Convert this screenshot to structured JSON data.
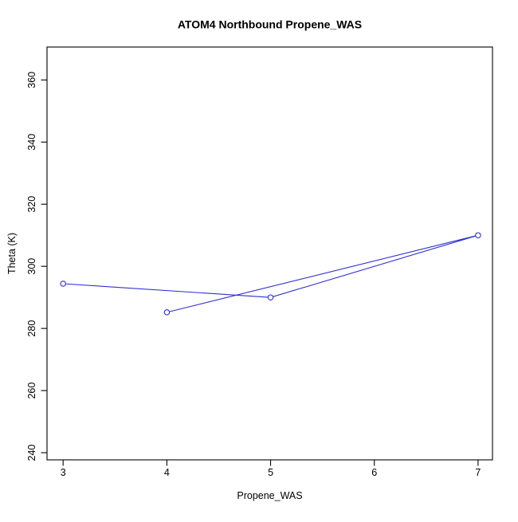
{
  "chart_data": {
    "type": "line",
    "title": "ATOM4 Northbound Propene_WAS",
    "xlabel": "Propene_WAS",
    "ylabel": "Theta (K)",
    "x_ticks": [
      3,
      4,
      5,
      6,
      7
    ],
    "y_ticks": [
      240,
      260,
      280,
      300,
      320,
      340,
      360
    ],
    "xlim": [
      2.845,
      7.139
    ],
    "ylim": [
      237.7,
      370.6
    ],
    "grid": false,
    "legend": null,
    "marker": "open-circle",
    "colors": {
      "series": "#2f2fd3",
      "axis": "#000000",
      "background": "#ffffff"
    },
    "points": [
      {
        "x": 3,
        "y": 294.4
      },
      {
        "x": 4,
        "y": 285.2
      },
      {
        "x": 5,
        "y": 290.0
      },
      {
        "x": 7,
        "y": 310.0
      }
    ],
    "draw_order": [
      {
        "x": 3,
        "y": 294.4
      },
      {
        "x": 5,
        "y": 290.0
      },
      {
        "x": 7,
        "y": 310.0
      },
      {
        "x": 4,
        "y": 285.2
      }
    ]
  }
}
